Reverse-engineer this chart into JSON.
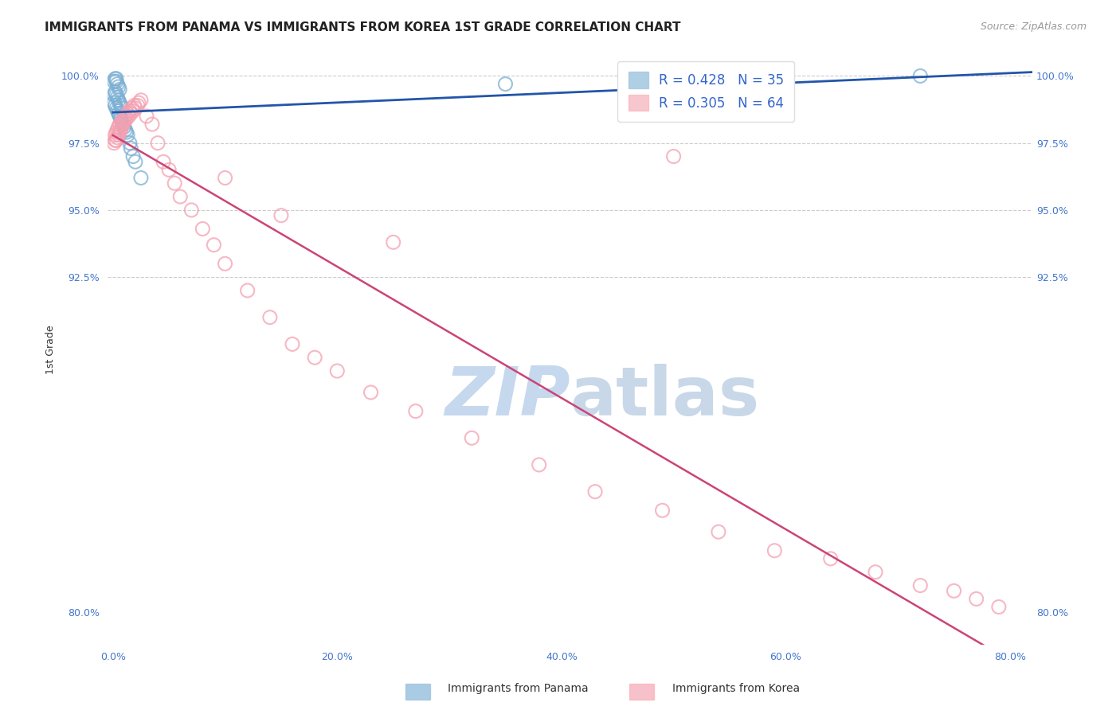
{
  "title": "IMMIGRANTS FROM PANAMA VS IMMIGRANTS FROM KOREA 1ST GRADE CORRELATION CHART",
  "source": "Source: ZipAtlas.com",
  "ylabel": "1st Grade",
  "legend_label_1": "Immigrants from Panama",
  "legend_label_2": "Immigrants from Korea",
  "R1": 0.428,
  "N1": 35,
  "R2": 0.305,
  "N2": 64,
  "color1": "#7BAFD4",
  "color2": "#F4A0B0",
  "trendline1_color": "#2255AA",
  "trendline2_color": "#CC4477",
  "xlim": [
    -0.005,
    0.82
  ],
  "ylim": [
    0.788,
    1.008
  ],
  "xtick_labels": [
    "0.0%",
    "20.0%",
    "40.0%",
    "60.0%",
    "80.0%"
  ],
  "xtick_values": [
    0.0,
    0.2,
    0.4,
    0.6,
    0.8
  ],
  "ytick_labels": [
    "100.0%",
    "97.5%",
    "95.0%",
    "92.5%",
    "80.0%"
  ],
  "ytick_values": [
    1.0,
    0.975,
    0.95,
    0.925,
    0.8
  ],
  "right_ytick_labels": [
    "100.0%",
    "97.5%",
    "95.0%",
    "92.5%",
    "80.0%"
  ],
  "right_ytick_values": [
    1.0,
    0.975,
    0.95,
    0.925,
    0.8
  ],
  "grid_yticks": [
    1.0,
    0.975,
    0.95,
    0.925
  ],
  "panama_x": [
    0.001,
    0.001,
    0.001,
    0.002,
    0.002,
    0.002,
    0.003,
    0.003,
    0.003,
    0.003,
    0.004,
    0.004,
    0.004,
    0.005,
    0.005,
    0.005,
    0.006,
    0.006,
    0.006,
    0.007,
    0.007,
    0.008,
    0.008,
    0.009,
    0.01,
    0.011,
    0.012,
    0.013,
    0.015,
    0.016,
    0.018,
    0.02,
    0.025,
    0.35,
    0.72
  ],
  "panama_y": [
    0.99,
    0.993,
    0.998,
    0.989,
    0.994,
    0.999,
    0.988,
    0.993,
    0.998,
    0.999,
    0.987,
    0.992,
    0.997,
    0.986,
    0.991,
    0.996,
    0.985,
    0.99,
    0.995,
    0.984,
    0.989,
    0.983,
    0.988,
    0.982,
    0.981,
    0.98,
    0.979,
    0.978,
    0.975,
    0.973,
    0.97,
    0.968,
    0.962,
    0.997,
    1.0
  ],
  "korea_x": [
    0.001,
    0.002,
    0.002,
    0.003,
    0.003,
    0.004,
    0.004,
    0.005,
    0.005,
    0.006,
    0.006,
    0.007,
    0.008,
    0.008,
    0.009,
    0.01,
    0.01,
    0.011,
    0.012,
    0.013,
    0.014,
    0.015,
    0.016,
    0.017,
    0.018,
    0.019,
    0.02,
    0.022,
    0.023,
    0.025,
    0.03,
    0.035,
    0.04,
    0.045,
    0.05,
    0.055,
    0.06,
    0.07,
    0.08,
    0.09,
    0.1,
    0.12,
    0.14,
    0.16,
    0.18,
    0.2,
    0.23,
    0.27,
    0.32,
    0.38,
    0.43,
    0.49,
    0.54,
    0.59,
    0.64,
    0.68,
    0.72,
    0.75,
    0.77,
    0.79,
    0.1,
    0.15,
    0.25,
    0.5
  ],
  "korea_y": [
    0.975,
    0.976,
    0.978,
    0.976,
    0.979,
    0.977,
    0.98,
    0.978,
    0.981,
    0.979,
    0.982,
    0.98,
    0.981,
    0.983,
    0.982,
    0.983,
    0.984,
    0.985,
    0.984,
    0.986,
    0.985,
    0.987,
    0.986,
    0.988,
    0.987,
    0.989,
    0.988,
    0.989,
    0.99,
    0.991,
    0.985,
    0.982,
    0.975,
    0.968,
    0.965,
    0.96,
    0.955,
    0.95,
    0.943,
    0.937,
    0.93,
    0.92,
    0.91,
    0.9,
    0.895,
    0.89,
    0.882,
    0.875,
    0.865,
    0.855,
    0.845,
    0.838,
    0.83,
    0.823,
    0.82,
    0.815,
    0.81,
    0.808,
    0.805,
    0.802,
    0.962,
    0.948,
    0.938,
    0.97
  ],
  "watermark_zip": "ZIP",
  "watermark_atlas": "atlas",
  "watermark_color_zip": "#C5D8EE",
  "watermark_color_atlas": "#C8D8E8",
  "background_color": "#FFFFFF",
  "title_fontsize": 11,
  "axis_label_fontsize": 9,
  "tick_fontsize": 9,
  "legend_fontsize": 12,
  "source_fontsize": 9
}
